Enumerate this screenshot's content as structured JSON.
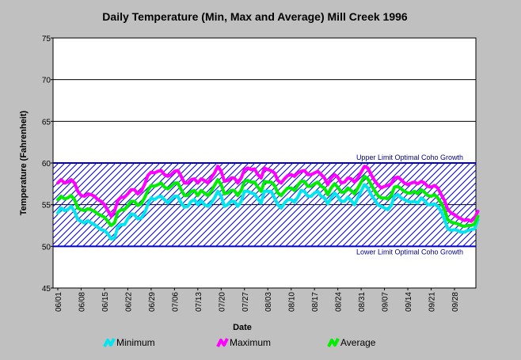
{
  "chart_data": {
    "type": "line",
    "title": "Daily Temperature (Min, Max and Average) Mill Creek 1996",
    "xlabel": "Date",
    "ylabel": "Temperature (Fahrenheit)",
    "ylim": [
      45,
      75
    ],
    "yticks": [
      45,
      50,
      55,
      60,
      65,
      70,
      75
    ],
    "grid": true,
    "xtick_labels": [
      "06/01",
      "06/08",
      "06/15",
      "06/22",
      "06/29",
      "07/06",
      "07/13",
      "07/20",
      "07/27",
      "08/03",
      "08/10",
      "08/17",
      "08/24",
      "08/31",
      "09/07",
      "09/14",
      "09/21",
      "09/28"
    ],
    "x_day_count": 122,
    "reference_band": {
      "upper": 60,
      "lower": 50,
      "upper_label": "Upper Limit Optimal Coho Growth",
      "lower_label": "Lower Limit Optimal Coho Growth",
      "color": "#0000cd"
    },
    "legend_position": "bottom",
    "series": [
      {
        "name": "Minimum",
        "color": "#00e5ee",
        "values": [
          54.0,
          54.6,
          54.3,
          54.4,
          54.8,
          54.2,
          53.2,
          53.0,
          52.8,
          53.1,
          52.8,
          52.6,
          52.3,
          52.0,
          51.9,
          51.5,
          50.9,
          51.0,
          52.3,
          52.6,
          52.6,
          53.3,
          53.9,
          53.8,
          53.3,
          53.4,
          54.0,
          55.0,
          55.8,
          55.6,
          55.9,
          56.0,
          55.6,
          55.2,
          55.6,
          56.0,
          56.0,
          55.2,
          54.7,
          54.8,
          55.4,
          55.6,
          55.0,
          55.5,
          55.0,
          54.8,
          55.2,
          55.8,
          56.6,
          56.0,
          54.8,
          55.0,
          55.4,
          55.4,
          54.8,
          55.4,
          56.6,
          56.6,
          56.4,
          56.3,
          55.7,
          55.2,
          56.6,
          56.6,
          56.6,
          55.8,
          55.0,
          54.6,
          55.2,
          55.6,
          55.6,
          55.3,
          55.9,
          56.7,
          56.6,
          56.0,
          56.0,
          56.4,
          56.6,
          56.0,
          55.8,
          55.1,
          55.8,
          56.4,
          56.0,
          55.4,
          55.4,
          55.9,
          55.5,
          55.0,
          55.8,
          56.6,
          57.4,
          57.0,
          56.2,
          55.6,
          55.0,
          54.8,
          54.6,
          54.4,
          54.9,
          56.0,
          56.2,
          55.8,
          55.6,
          55.4,
          55.3,
          55.4,
          55.2,
          55.8,
          55.5,
          55.0,
          55.0,
          55.1,
          54.8,
          54.2,
          53.2,
          52.1,
          51.9,
          52.0,
          51.9,
          51.7,
          51.7,
          51.9,
          52.0,
          52.1,
          53.2
        ]
      },
      {
        "name": "Maximum",
        "color": "#ff00ff",
        "values": [
          57.6,
          58.0,
          57.6,
          57.7,
          58.0,
          57.6,
          56.6,
          56.1,
          56.0,
          56.3,
          56.2,
          56.0,
          55.6,
          55.4,
          55.0,
          54.3,
          53.6,
          54.2,
          55.5,
          55.9,
          55.9,
          56.3,
          56.8,
          56.8,
          56.3,
          56.6,
          57.4,
          58.5,
          58.9,
          58.8,
          59.0,
          59.1,
          58.6,
          58.4,
          58.6,
          59.0,
          59.1,
          58.4,
          57.6,
          57.6,
          58.0,
          58.1,
          57.6,
          58.1,
          57.9,
          57.6,
          58.2,
          58.8,
          59.6,
          59.0,
          57.8,
          57.9,
          58.2,
          58.2,
          57.6,
          58.2,
          59.2,
          59.4,
          59.2,
          59.3,
          58.6,
          58.2,
          59.4,
          59.2,
          59.1,
          58.8,
          57.9,
          57.6,
          58.1,
          58.5,
          58.6,
          58.4,
          58.8,
          59.0,
          59.1,
          58.6,
          58.6,
          58.8,
          59.0,
          58.6,
          58.2,
          57.4,
          58.2,
          58.6,
          58.3,
          57.6,
          57.7,
          58.2,
          58.1,
          57.7,
          58.2,
          58.9,
          59.6,
          59.4,
          58.6,
          57.9,
          57.4,
          57.0,
          57.2,
          57.3,
          57.5,
          58.2,
          58.3,
          58.0,
          57.6,
          57.4,
          57.6,
          57.7,
          57.5,
          57.8,
          57.6,
          57.2,
          57.1,
          57.3,
          57.0,
          56.2,
          55.5,
          54.4,
          54.0,
          53.8,
          53.5,
          53.3,
          53.1,
          53.2,
          53.0,
          53.4,
          54.2
        ]
      },
      {
        "name": "Average",
        "color": "#00ee00",
        "values": [
          55.6,
          56.0,
          55.7,
          55.8,
          56.1,
          55.6,
          54.6,
          54.4,
          54.3,
          54.5,
          54.4,
          54.2,
          53.9,
          53.7,
          53.5,
          53.0,
          52.5,
          52.8,
          54.1,
          54.4,
          54.4,
          54.9,
          55.4,
          55.4,
          54.9,
          55.1,
          55.8,
          56.7,
          57.3,
          57.2,
          57.4,
          57.6,
          57.1,
          56.9,
          57.2,
          57.6,
          57.6,
          56.8,
          56.1,
          56.1,
          56.6,
          56.7,
          56.1,
          56.7,
          56.4,
          56.1,
          56.6,
          57.3,
          58.0,
          57.4,
          56.3,
          56.4,
          56.7,
          56.7,
          56.1,
          56.7,
          57.8,
          57.9,
          57.7,
          57.7,
          57.1,
          56.6,
          57.8,
          57.7,
          57.7,
          57.3,
          56.4,
          56.1,
          56.6,
          57.0,
          57.0,
          56.7,
          57.3,
          57.8,
          57.8,
          57.2,
          57.2,
          57.5,
          57.7,
          57.2,
          57.0,
          56.2,
          57.0,
          57.5,
          57.1,
          56.5,
          56.5,
          57.0,
          56.7,
          56.3,
          57.0,
          57.7,
          58.4,
          58.1,
          57.4,
          56.7,
          56.1,
          55.8,
          55.8,
          55.7,
          56.1,
          57.1,
          57.2,
          56.9,
          56.6,
          56.4,
          56.4,
          56.6,
          56.3,
          56.8,
          56.5,
          56.1,
          56.0,
          56.2,
          55.8,
          55.2,
          54.4,
          53.2,
          52.9,
          52.8,
          52.7,
          52.5,
          52.4,
          52.5,
          52.5,
          52.7,
          53.6
        ]
      }
    ]
  }
}
